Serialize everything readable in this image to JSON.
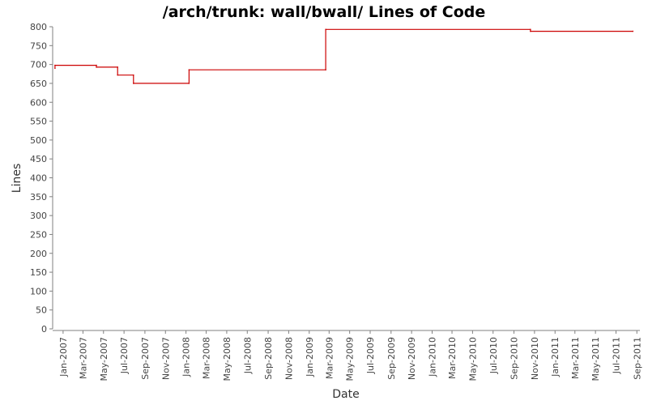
{
  "chart_data": {
    "type": "line",
    "title": "/arch/trunk: wall/bwall/ Lines of Code",
    "xlabel": "Date",
    "ylabel": "Lines",
    "ylim": [
      0,
      800
    ],
    "y_ticks": [
      0,
      50,
      100,
      150,
      200,
      250,
      300,
      350,
      400,
      450,
      500,
      550,
      600,
      650,
      700,
      750,
      800
    ],
    "xlim": [
      "2006-12-01",
      "2011-09-10"
    ],
    "x_ticks": [
      {
        "date": "2007-01-01",
        "label": "Jan-2007"
      },
      {
        "date": "2007-03-01",
        "label": "Mar-2007"
      },
      {
        "date": "2007-05-01",
        "label": "May-2007"
      },
      {
        "date": "2007-07-01",
        "label": "Jul-2007"
      },
      {
        "date": "2007-09-01",
        "label": "Sep-2007"
      },
      {
        "date": "2007-11-01",
        "label": "Nov-2007"
      },
      {
        "date": "2008-01-01",
        "label": "Jan-2008"
      },
      {
        "date": "2008-03-01",
        "label": "Mar-2008"
      },
      {
        "date": "2008-05-01",
        "label": "May-2008"
      },
      {
        "date": "2008-07-01",
        "label": "Jul-2008"
      },
      {
        "date": "2008-09-01",
        "label": "Sep-2008"
      },
      {
        "date": "2008-11-01",
        "label": "Nov-2008"
      },
      {
        "date": "2009-01-01",
        "label": "Jan-2009"
      },
      {
        "date": "2009-03-01",
        "label": "Mar-2009"
      },
      {
        "date": "2009-05-01",
        "label": "May-2009"
      },
      {
        "date": "2009-07-01",
        "label": "Jul-2009"
      },
      {
        "date": "2009-09-01",
        "label": "Sep-2009"
      },
      {
        "date": "2009-11-01",
        "label": "Nov-2009"
      },
      {
        "date": "2010-01-01",
        "label": "Jan-2010"
      },
      {
        "date": "2010-03-01",
        "label": "Mar-2010"
      },
      {
        "date": "2010-05-01",
        "label": "May-2010"
      },
      {
        "date": "2010-07-01",
        "label": "Jul-2010"
      },
      {
        "date": "2010-09-01",
        "label": "Sep-2010"
      },
      {
        "date": "2010-11-01",
        "label": "Nov-2010"
      },
      {
        "date": "2011-01-01",
        "label": "Jan-2011"
      },
      {
        "date": "2011-03-01",
        "label": "Mar-2011"
      },
      {
        "date": "2011-05-01",
        "label": "May-2011"
      },
      {
        "date": "2011-07-01",
        "label": "Jul-2011"
      },
      {
        "date": "2011-09-01",
        "label": "Sep-2011"
      }
    ],
    "series": [
      {
        "step": true,
        "color": "#cc0000",
        "points": [
          {
            "x": "2006-12-08",
            "y": 690
          },
          {
            "x": "2006-12-08",
            "y": 698
          },
          {
            "x": "2007-04-10",
            "y": 698
          },
          {
            "x": "2007-04-10",
            "y": 693
          },
          {
            "x": "2007-06-12",
            "y": 693
          },
          {
            "x": "2007-06-12",
            "y": 672
          },
          {
            "x": "2007-07-29",
            "y": 672
          },
          {
            "x": "2007-07-29",
            "y": 650
          },
          {
            "x": "2008-01-10",
            "y": 650
          },
          {
            "x": "2008-01-10",
            "y": 686
          },
          {
            "x": "2009-02-19",
            "y": 686
          },
          {
            "x": "2009-02-19",
            "y": 793
          },
          {
            "x": "2010-10-20",
            "y": 793
          },
          {
            "x": "2010-10-20",
            "y": 788
          },
          {
            "x": "2011-08-20",
            "y": 788
          }
        ]
      }
    ]
  }
}
